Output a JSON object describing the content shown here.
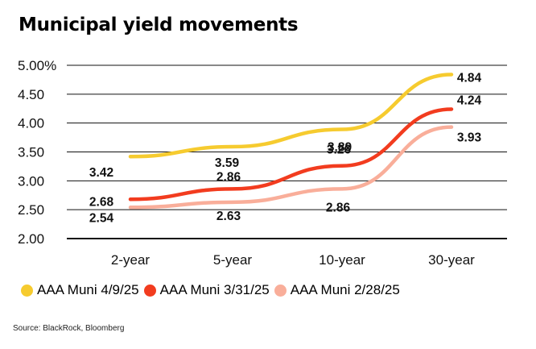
{
  "title": "Municipal yield movements",
  "source": "Source: BlackRock, Bloomberg",
  "chart_data": {
    "type": "line",
    "categories": [
      "2-year",
      "5-year",
      "10-year",
      "30-year"
    ],
    "ylim": [
      2.0,
      5.0
    ],
    "yticks": [
      "2.00",
      "2.50",
      "3.00",
      "3.50",
      "4.00",
      "4.50",
      "5.00%"
    ],
    "grid": true,
    "legend_position": "bottom",
    "series": [
      {
        "name": "AAA Muni 4/9/25",
        "color": "#F6CB2F",
        "values": [
          3.42,
          3.59,
          3.89,
          4.84
        ],
        "labels": [
          "3.42",
          "3.59",
          "3.89",
          "4.84"
        ]
      },
      {
        "name": "AAA Muni 3/31/25",
        "color": "#F23C1F",
        "values": [
          2.68,
          2.86,
          3.26,
          4.24
        ],
        "labels": [
          "2.68",
          "2.86",
          "3.26",
          "4.24"
        ]
      },
      {
        "name": "AAA Muni 2/28/25",
        "color": "#F9AE9A",
        "values": [
          2.54,
          2.63,
          2.86,
          3.93
        ],
        "labels": [
          "2.54",
          "2.63",
          "2.86",
          "3.93"
        ]
      }
    ]
  }
}
